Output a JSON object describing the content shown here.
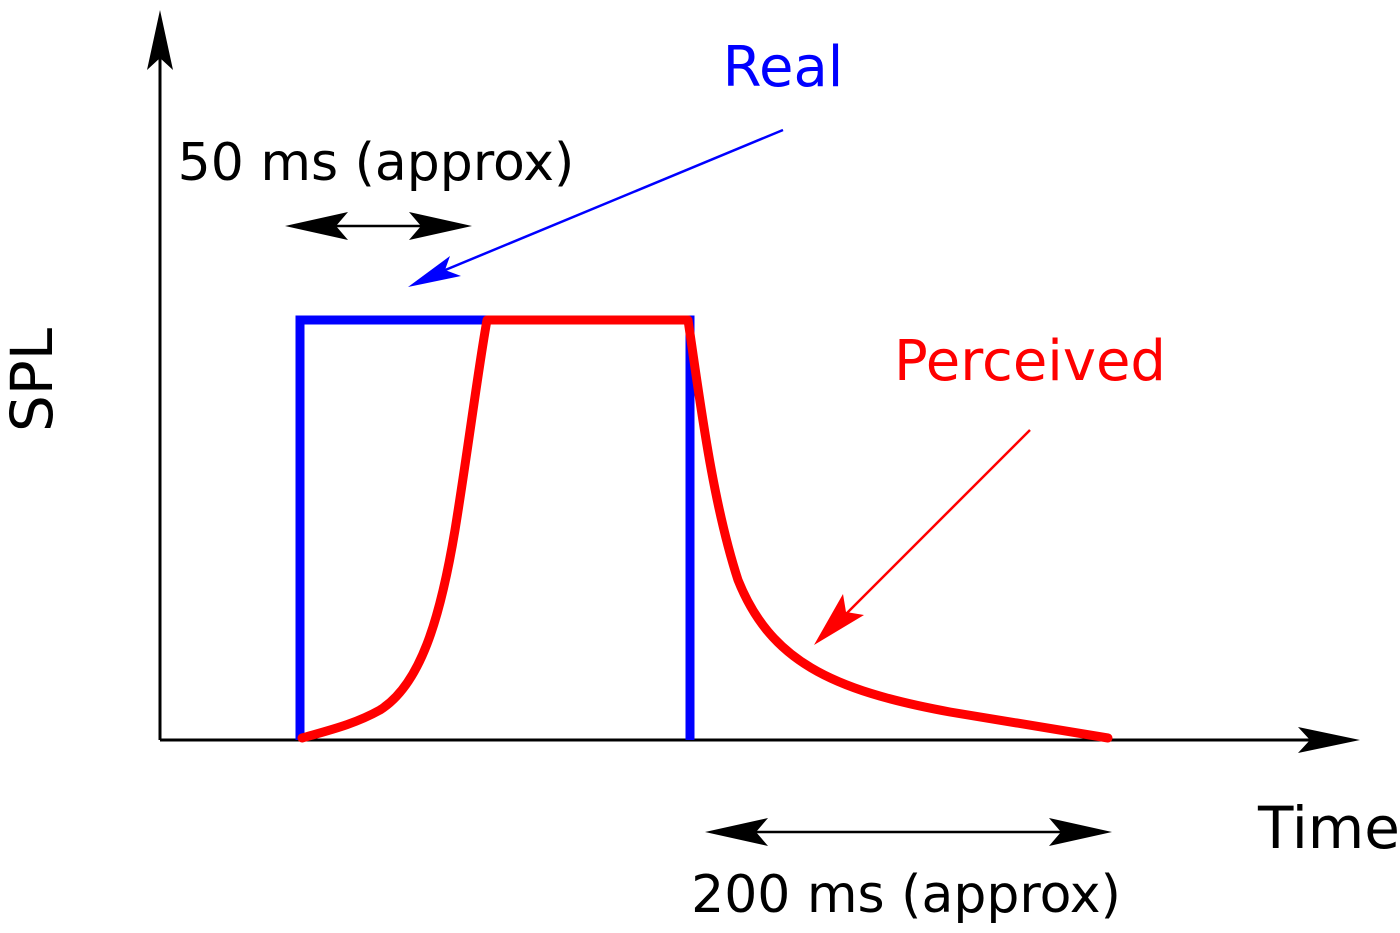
{
  "labels": {
    "y_axis": "SPL",
    "x_axis": "Time",
    "real": "Real",
    "perceived": "Perceived",
    "onset_duration": "50 ms (approx)",
    "offset_duration": "200 ms (approx)"
  },
  "colors": {
    "axis": "#000000",
    "real": "#0000ff",
    "perceived": "#ff0000",
    "text": "#000000"
  }
}
